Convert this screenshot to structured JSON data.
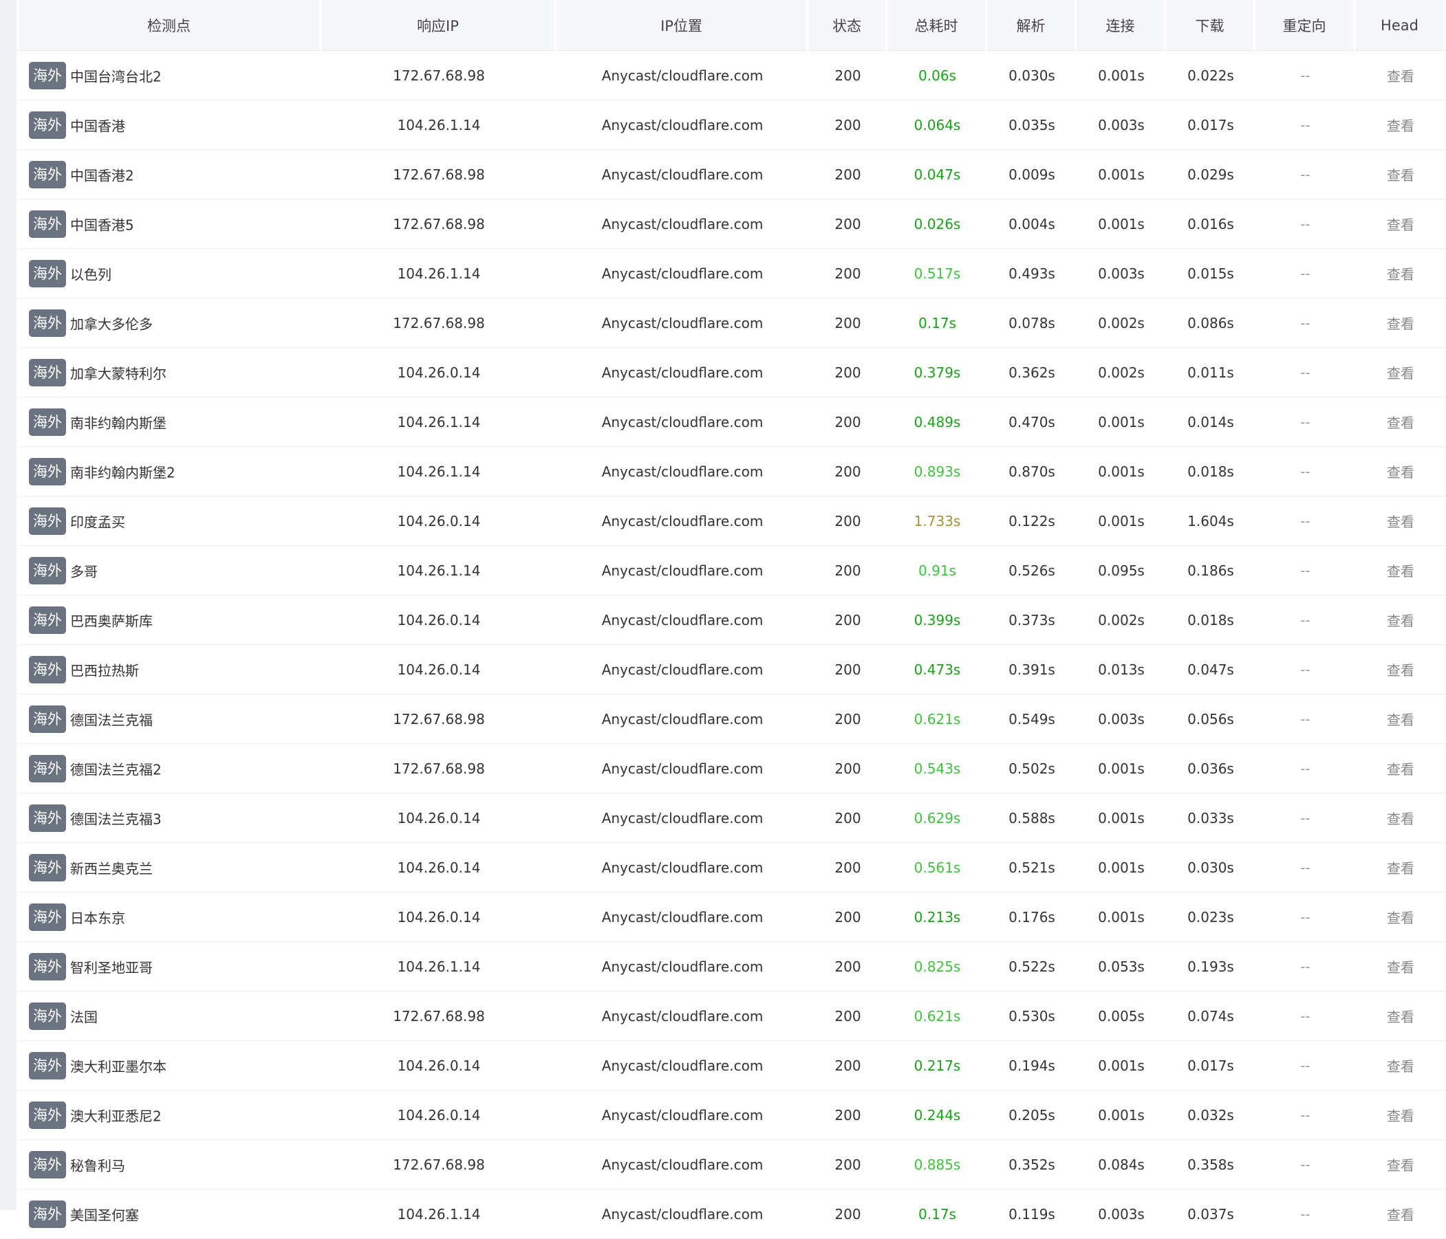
{
  "table": {
    "columns": [
      "检测点",
      "响应IP",
      "IP位置",
      "状态",
      "总耗时",
      "解析",
      "连接",
      "下载",
      "重定向",
      "Head"
    ],
    "rows": [
      {
        "tag": "海外",
        "name": "中国台湾台北2",
        "ip": "172.67.68.98",
        "ip_location": "Anycast/cloudflare.com",
        "status": "200",
        "total": "0.06s",
        "total_color": "#18a318",
        "dns": "0.030s",
        "connect": "0.001s",
        "download": "0.022s",
        "redirect": "--",
        "head": "查看"
      },
      {
        "tag": "海外",
        "name": "中国香港",
        "ip": "104.26.1.14",
        "ip_location": "Anycast/cloudflare.com",
        "status": "200",
        "total": "0.064s",
        "total_color": "#18a318",
        "dns": "0.035s",
        "connect": "0.003s",
        "download": "0.017s",
        "redirect": "--",
        "head": "查看"
      },
      {
        "tag": "海外",
        "name": "中国香港2",
        "ip": "172.67.68.98",
        "ip_location": "Anycast/cloudflare.com",
        "status": "200",
        "total": "0.047s",
        "total_color": "#18a318",
        "dns": "0.009s",
        "connect": "0.001s",
        "download": "0.029s",
        "redirect": "--",
        "head": "查看"
      },
      {
        "tag": "海外",
        "name": "中国香港5",
        "ip": "172.67.68.98",
        "ip_location": "Anycast/cloudflare.com",
        "status": "200",
        "total": "0.026s",
        "total_color": "#18a318",
        "dns": "0.004s",
        "connect": "0.001s",
        "download": "0.016s",
        "redirect": "--",
        "head": "查看"
      },
      {
        "tag": "海外",
        "name": "以色列",
        "ip": "104.26.1.14",
        "ip_location": "Anycast/cloudflare.com",
        "status": "200",
        "total": "0.517s",
        "total_color": "#3cc43c",
        "dns": "0.493s",
        "connect": "0.003s",
        "download": "0.015s",
        "redirect": "--",
        "head": "查看"
      },
      {
        "tag": "海外",
        "name": "加拿大多伦多",
        "ip": "172.67.68.98",
        "ip_location": "Anycast/cloudflare.com",
        "status": "200",
        "total": "0.17s",
        "total_color": "#18a318",
        "dns": "0.078s",
        "connect": "0.002s",
        "download": "0.086s",
        "redirect": "--",
        "head": "查看"
      },
      {
        "tag": "海外",
        "name": "加拿大蒙特利尔",
        "ip": "104.26.0.14",
        "ip_location": "Anycast/cloudflare.com",
        "status": "200",
        "total": "0.379s",
        "total_color": "#18a318",
        "dns": "0.362s",
        "connect": "0.002s",
        "download": "0.011s",
        "redirect": "--",
        "head": "查看"
      },
      {
        "tag": "海外",
        "name": "南非约翰内斯堡",
        "ip": "104.26.1.14",
        "ip_location": "Anycast/cloudflare.com",
        "status": "200",
        "total": "0.489s",
        "total_color": "#18a318",
        "dns": "0.470s",
        "connect": "0.001s",
        "download": "0.014s",
        "redirect": "--",
        "head": "查看"
      },
      {
        "tag": "海外",
        "name": "南非约翰内斯堡2",
        "ip": "104.26.1.14",
        "ip_location": "Anycast/cloudflare.com",
        "status": "200",
        "total": "0.893s",
        "total_color": "#3cc43c",
        "dns": "0.870s",
        "connect": "0.001s",
        "download": "0.018s",
        "redirect": "--",
        "head": "查看"
      },
      {
        "tag": "海外",
        "name": "印度孟买",
        "ip": "104.26.0.14",
        "ip_location": "Anycast/cloudflare.com",
        "status": "200",
        "total": "1.733s",
        "total_color": "#a8902e",
        "dns": "0.122s",
        "connect": "0.001s",
        "download": "1.604s",
        "redirect": "--",
        "head": "查看"
      },
      {
        "tag": "海外",
        "name": "多哥",
        "ip": "104.26.1.14",
        "ip_location": "Anycast/cloudflare.com",
        "status": "200",
        "total": "0.91s",
        "total_color": "#3cc43c",
        "dns": "0.526s",
        "connect": "0.095s",
        "download": "0.186s",
        "redirect": "--",
        "head": "查看"
      },
      {
        "tag": "海外",
        "name": "巴西奥萨斯库",
        "ip": "104.26.0.14",
        "ip_location": "Anycast/cloudflare.com",
        "status": "200",
        "total": "0.399s",
        "total_color": "#18a318",
        "dns": "0.373s",
        "connect": "0.002s",
        "download": "0.018s",
        "redirect": "--",
        "head": "查看"
      },
      {
        "tag": "海外",
        "name": "巴西拉热斯",
        "ip": "104.26.0.14",
        "ip_location": "Anycast/cloudflare.com",
        "status": "200",
        "total": "0.473s",
        "total_color": "#18a318",
        "dns": "0.391s",
        "connect": "0.013s",
        "download": "0.047s",
        "redirect": "--",
        "head": "查看"
      },
      {
        "tag": "海外",
        "name": "德国法兰克福",
        "ip": "172.67.68.98",
        "ip_location": "Anycast/cloudflare.com",
        "status": "200",
        "total": "0.621s",
        "total_color": "#3cc43c",
        "dns": "0.549s",
        "connect": "0.003s",
        "download": "0.056s",
        "redirect": "--",
        "head": "查看"
      },
      {
        "tag": "海外",
        "name": "德国法兰克福2",
        "ip": "172.67.68.98",
        "ip_location": "Anycast/cloudflare.com",
        "status": "200",
        "total": "0.543s",
        "total_color": "#3cc43c",
        "dns": "0.502s",
        "connect": "0.001s",
        "download": "0.036s",
        "redirect": "--",
        "head": "查看"
      },
      {
        "tag": "海外",
        "name": "德国法兰克福3",
        "ip": "104.26.0.14",
        "ip_location": "Anycast/cloudflare.com",
        "status": "200",
        "total": "0.629s",
        "total_color": "#3cc43c",
        "dns": "0.588s",
        "connect": "0.001s",
        "download": "0.033s",
        "redirect": "--",
        "head": "查看"
      },
      {
        "tag": "海外",
        "name": "新西兰奥克兰",
        "ip": "104.26.0.14",
        "ip_location": "Anycast/cloudflare.com",
        "status": "200",
        "total": "0.561s",
        "total_color": "#3cc43c",
        "dns": "0.521s",
        "connect": "0.001s",
        "download": "0.030s",
        "redirect": "--",
        "head": "查看"
      },
      {
        "tag": "海外",
        "name": "日本东京",
        "ip": "104.26.0.14",
        "ip_location": "Anycast/cloudflare.com",
        "status": "200",
        "total": "0.213s",
        "total_color": "#18a318",
        "dns": "0.176s",
        "connect": "0.001s",
        "download": "0.023s",
        "redirect": "--",
        "head": "查看"
      },
      {
        "tag": "海外",
        "name": "智利圣地亚哥",
        "ip": "104.26.1.14",
        "ip_location": "Anycast/cloudflare.com",
        "status": "200",
        "total": "0.825s",
        "total_color": "#3cc43c",
        "dns": "0.522s",
        "connect": "0.053s",
        "download": "0.193s",
        "redirect": "--",
        "head": "查看"
      },
      {
        "tag": "海外",
        "name": "法国",
        "ip": "172.67.68.98",
        "ip_location": "Anycast/cloudflare.com",
        "status": "200",
        "total": "0.621s",
        "total_color": "#3cc43c",
        "dns": "0.530s",
        "connect": "0.005s",
        "download": "0.074s",
        "redirect": "--",
        "head": "查看"
      },
      {
        "tag": "海外",
        "name": "澳大利亚墨尔本",
        "ip": "104.26.0.14",
        "ip_location": "Anycast/cloudflare.com",
        "status": "200",
        "total": "0.217s",
        "total_color": "#18a318",
        "dns": "0.194s",
        "connect": "0.001s",
        "download": "0.017s",
        "redirect": "--",
        "head": "查看"
      },
      {
        "tag": "海外",
        "name": "澳大利亚悉尼2",
        "ip": "104.26.0.14",
        "ip_location": "Anycast/cloudflare.com",
        "status": "200",
        "total": "0.244s",
        "total_color": "#18a318",
        "dns": "0.205s",
        "connect": "0.001s",
        "download": "0.032s",
        "redirect": "--",
        "head": "查看"
      },
      {
        "tag": "海外",
        "name": "秘鲁利马",
        "ip": "172.67.68.98",
        "ip_location": "Anycast/cloudflare.com",
        "status": "200",
        "total": "0.885s",
        "total_color": "#3cc43c",
        "dns": "0.352s",
        "connect": "0.084s",
        "download": "0.358s",
        "redirect": "--",
        "head": "查看"
      },
      {
        "tag": "海外",
        "name": "美国圣何塞",
        "ip": "104.26.1.14",
        "ip_location": "Anycast/cloudflare.com",
        "status": "200",
        "total": "0.17s",
        "total_color": "#18a318",
        "dns": "0.119s",
        "connect": "0.003s",
        "download": "0.037s",
        "redirect": "--",
        "head": "查看"
      }
    ]
  }
}
